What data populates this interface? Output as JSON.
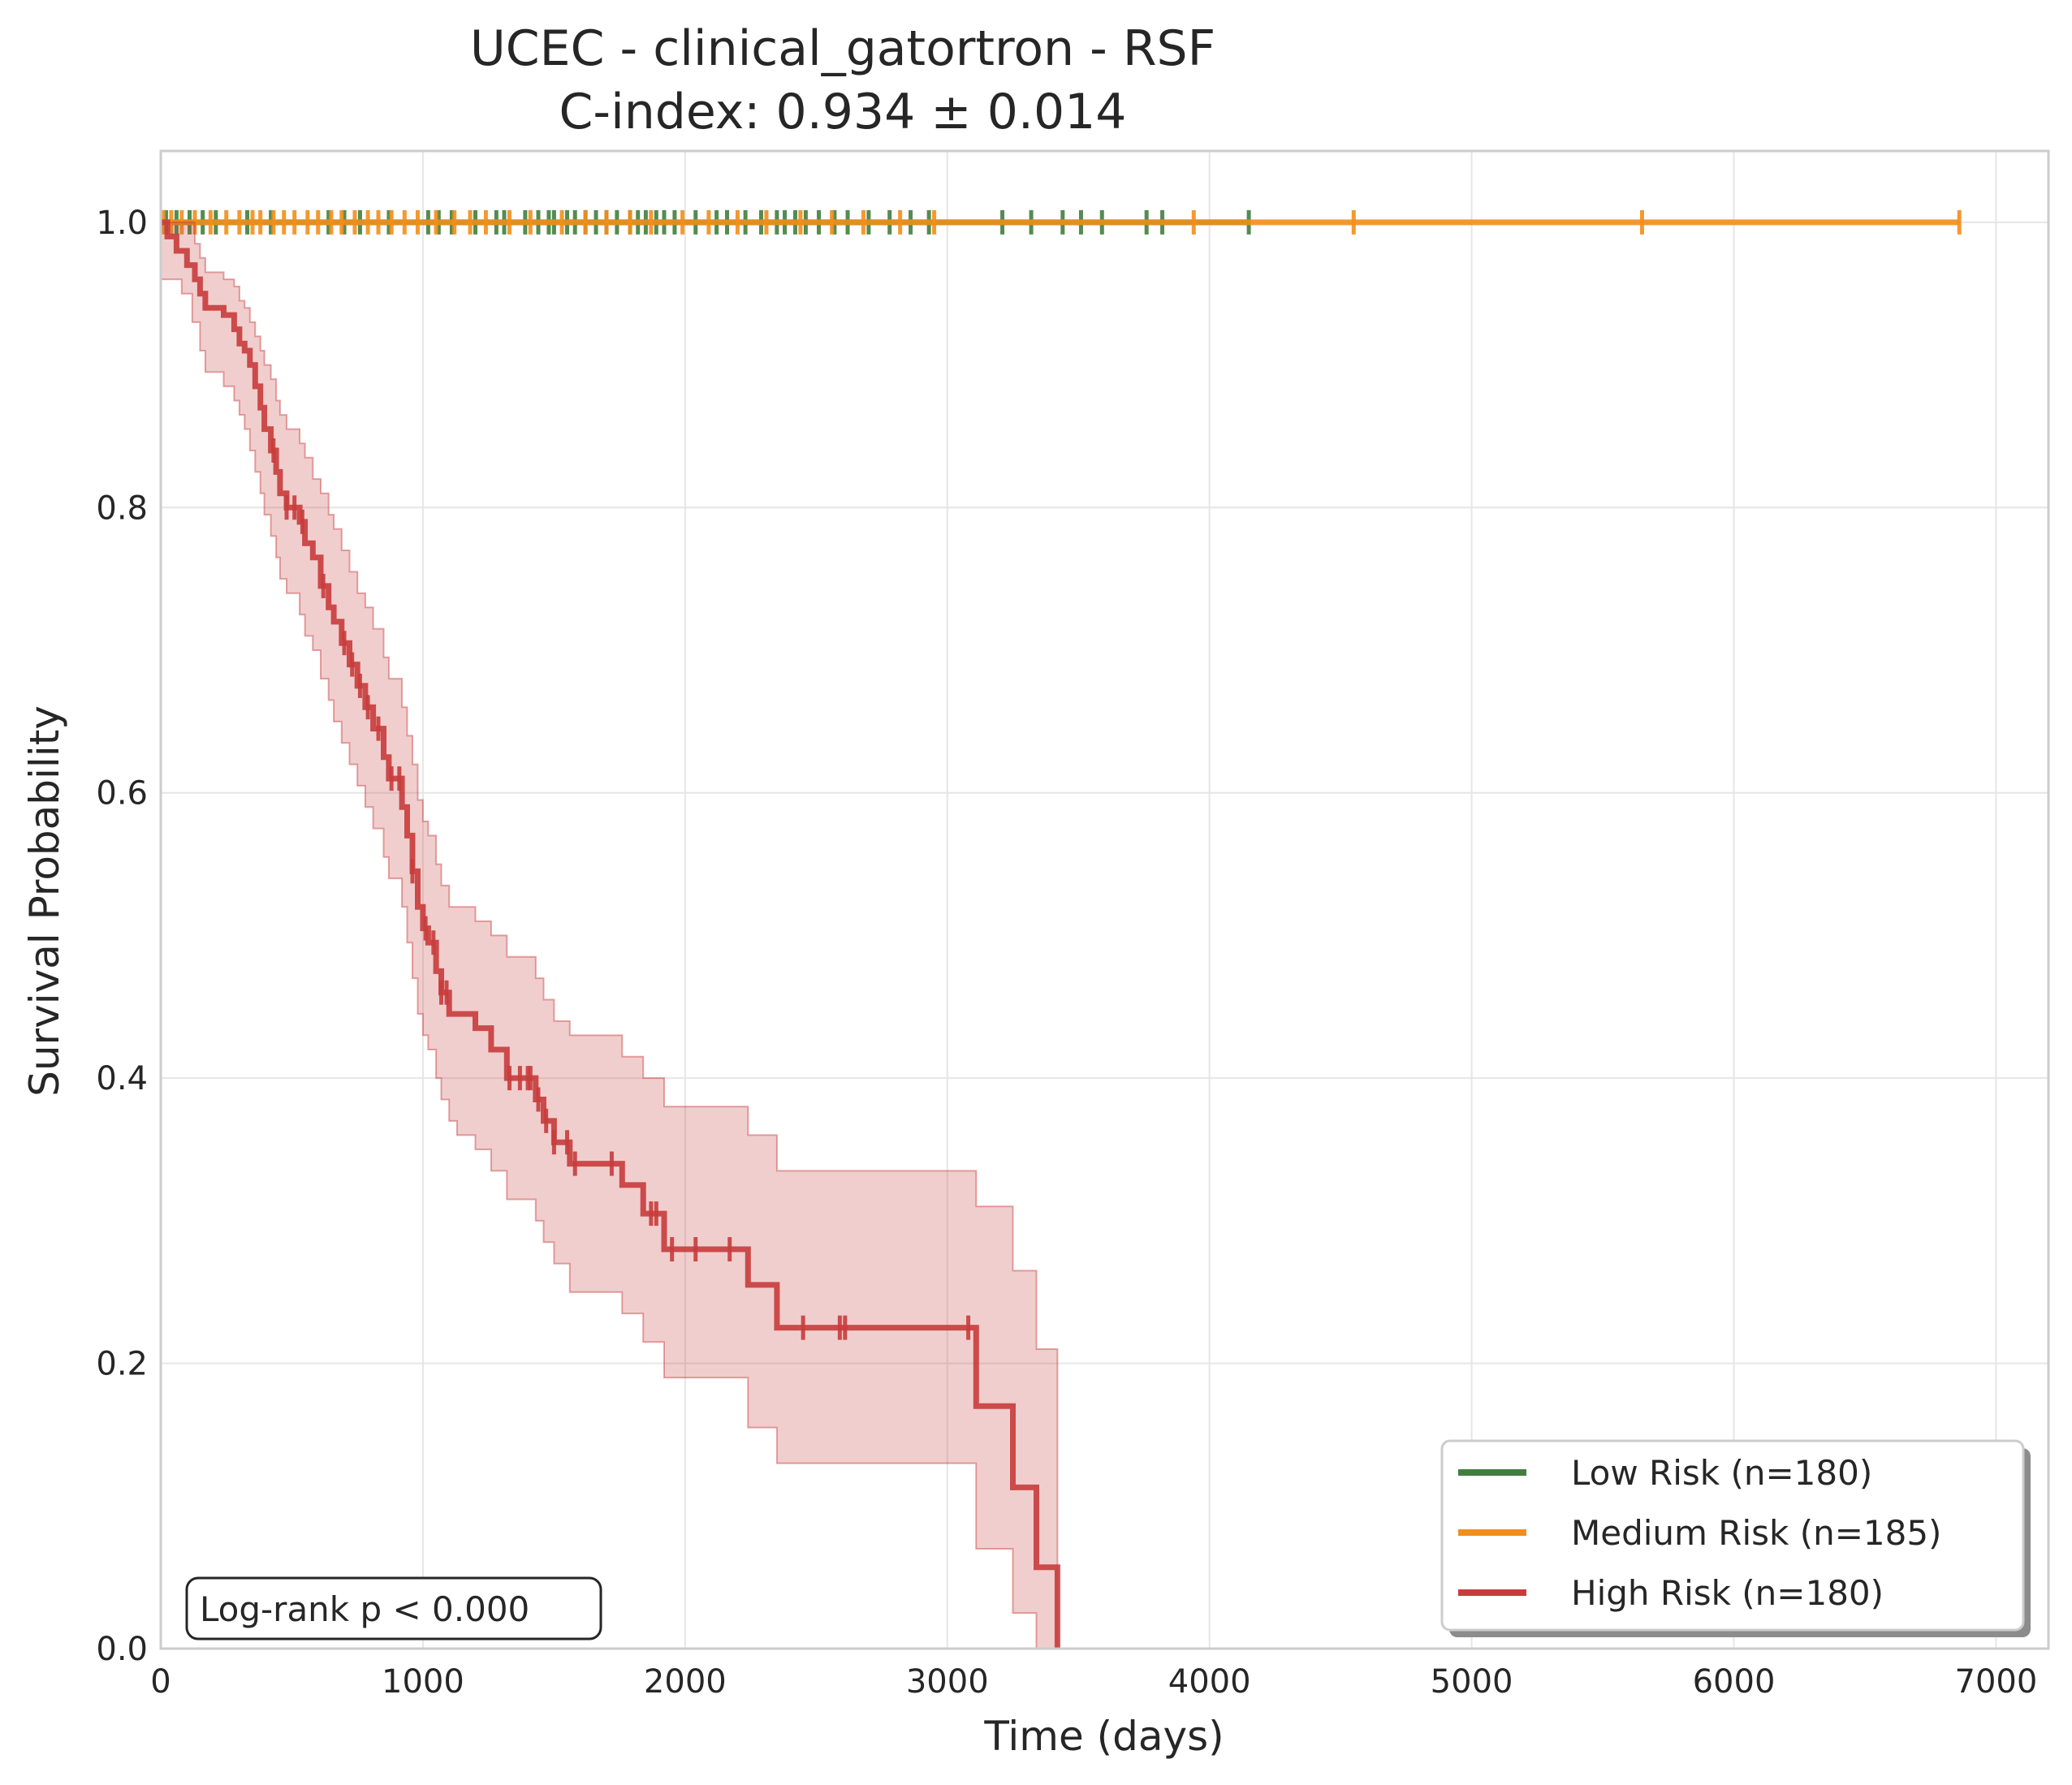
{
  "chart_data": {
    "type": "line",
    "subtype": "kaplan-meier",
    "title": "UCEC - clinical_gatortron - RSF",
    "subtitle": "C-index: 0.934 ± 0.014",
    "xlabel": "Time (days)",
    "ylabel": "Survival Probability",
    "xlim": [
      0,
      7200
    ],
    "ylim": [
      0,
      1.05
    ],
    "x_ticks": [
      0,
      1000,
      2000,
      3000,
      4000,
      5000,
      6000,
      7000
    ],
    "y_ticks": [
      0.0,
      0.2,
      0.4,
      0.6,
      0.8,
      1.0
    ],
    "x_tick_labels": [
      "0",
      "1000",
      "2000",
      "3000",
      "4000",
      "5000",
      "6000",
      "7000"
    ],
    "y_tick_labels": [
      "0.0",
      "0.2",
      "0.4",
      "0.6",
      "0.8",
      "1.0"
    ],
    "grid": true,
    "legend_position": "bottom-right",
    "annotation": "Log-rank p < 0.000",
    "series": [
      {
        "name": "Low Risk (n=180)",
        "color": "#3f7f3f",
        "steps": [
          [
            0,
            1.0
          ],
          [
            4150,
            1.0
          ]
        ],
        "censor_times": [
          20,
          60,
          110,
          160,
          210,
          330,
          420,
          640,
          700,
          760,
          870,
          1020,
          1060,
          1110,
          1200,
          1280,
          1310,
          1390,
          1440,
          1480,
          1500,
          1550,
          1580,
          1620,
          1660,
          1700,
          1740,
          1790,
          1820,
          1850,
          1890,
          1920,
          1960,
          2040,
          2120,
          2160,
          2230,
          2290,
          2350,
          2380,
          2420,
          2460,
          2510,
          2570,
          2620,
          2700,
          2780,
          2860,
          2930,
          3210,
          3320,
          3440,
          3510,
          3590,
          3760,
          3820,
          4150
        ]
      },
      {
        "name": "Medium Risk (n=185)",
        "color": "#f28e1c",
        "steps": [
          [
            0,
            1.0
          ],
          [
            6860,
            1.0
          ]
        ],
        "censor_times": [
          10,
          40,
          80,
          130,
          190,
          250,
          300,
          350,
          380,
          430,
          470,
          510,
          560,
          600,
          650,
          690,
          740,
          790,
          830,
          880,
          930,
          980,
          1050,
          1120,
          1180,
          1240,
          1330,
          1410,
          1530,
          1620,
          1700,
          1790,
          1870,
          1990,
          2090,
          2200,
          2310,
          2440,
          2560,
          2680,
          2820,
          2950,
          3940,
          4550,
          5650,
          6860
        ]
      },
      {
        "name": "High Risk (n=180)",
        "color": "#c83c3c",
        "steps": [
          [
            0,
            1.0
          ],
          [
            25,
            0.99
          ],
          [
            60,
            0.98
          ],
          [
            100,
            0.97
          ],
          [
            130,
            0.96
          ],
          [
            150,
            0.95
          ],
          [
            170,
            0.94
          ],
          [
            240,
            0.935
          ],
          [
            280,
            0.925
          ],
          [
            300,
            0.915
          ],
          [
            320,
            0.91
          ],
          [
            340,
            0.9
          ],
          [
            360,
            0.885
          ],
          [
            380,
            0.87
          ],
          [
            395,
            0.855
          ],
          [
            420,
            0.84
          ],
          [
            440,
            0.825
          ],
          [
            455,
            0.81
          ],
          [
            480,
            0.8
          ],
          [
            530,
            0.79
          ],
          [
            550,
            0.775
          ],
          [
            580,
            0.765
          ],
          [
            610,
            0.745
          ],
          [
            640,
            0.73
          ],
          [
            660,
            0.72
          ],
          [
            690,
            0.705
          ],
          [
            720,
            0.69
          ],
          [
            750,
            0.675
          ],
          [
            780,
            0.66
          ],
          [
            810,
            0.645
          ],
          [
            850,
            0.625
          ],
          [
            870,
            0.61
          ],
          [
            920,
            0.59
          ],
          [
            940,
            0.57
          ],
          [
            960,
            0.545
          ],
          [
            980,
            0.52
          ],
          [
            1000,
            0.505
          ],
          [
            1020,
            0.495
          ],
          [
            1050,
            0.475
          ],
          [
            1070,
            0.46
          ],
          [
            1100,
            0.445
          ],
          [
            1200,
            0.435
          ],
          [
            1260,
            0.42
          ],
          [
            1320,
            0.4
          ],
          [
            1430,
            0.385
          ],
          [
            1460,
            0.37
          ],
          [
            1500,
            0.355
          ],
          [
            1560,
            0.34
          ],
          [
            1760,
            0.325
          ],
          [
            1840,
            0.305
          ],
          [
            1920,
            0.28
          ],
          [
            2240,
            0.255
          ],
          [
            2350,
            0.225
          ],
          [
            3110,
            0.17
          ],
          [
            3250,
            0.113
          ],
          [
            3340,
            0.057
          ],
          [
            3420,
            0.0
          ]
        ],
        "lower": [
          [
            0,
            0.96
          ],
          [
            25,
            0.96
          ],
          [
            80,
            0.95
          ],
          [
            120,
            0.93
          ],
          [
            150,
            0.91
          ],
          [
            170,
            0.895
          ],
          [
            240,
            0.885
          ],
          [
            280,
            0.875
          ],
          [
            300,
            0.865
          ],
          [
            320,
            0.855
          ],
          [
            340,
            0.84
          ],
          [
            360,
            0.825
          ],
          [
            380,
            0.81
          ],
          [
            395,
            0.795
          ],
          [
            420,
            0.78
          ],
          [
            440,
            0.765
          ],
          [
            455,
            0.75
          ],
          [
            480,
            0.74
          ],
          [
            530,
            0.725
          ],
          [
            550,
            0.71
          ],
          [
            580,
            0.7
          ],
          [
            610,
            0.68
          ],
          [
            640,
            0.665
          ],
          [
            660,
            0.65
          ],
          [
            690,
            0.635
          ],
          [
            720,
            0.62
          ],
          [
            750,
            0.605
          ],
          [
            780,
            0.59
          ],
          [
            810,
            0.575
          ],
          [
            850,
            0.555
          ],
          [
            870,
            0.54
          ],
          [
            920,
            0.52
          ],
          [
            940,
            0.495
          ],
          [
            960,
            0.47
          ],
          [
            980,
            0.445
          ],
          [
            1000,
            0.43
          ],
          [
            1020,
            0.42
          ],
          [
            1050,
            0.4
          ],
          [
            1070,
            0.385
          ],
          [
            1100,
            0.37
          ],
          [
            1130,
            0.36
          ],
          [
            1200,
            0.35
          ],
          [
            1260,
            0.335
          ],
          [
            1320,
            0.315
          ],
          [
            1430,
            0.3
          ],
          [
            1460,
            0.285
          ],
          [
            1500,
            0.27
          ],
          [
            1560,
            0.25
          ],
          [
            1760,
            0.235
          ],
          [
            1840,
            0.215
          ],
          [
            1920,
            0.19
          ],
          [
            2240,
            0.155
          ],
          [
            2350,
            0.13
          ],
          [
            3110,
            0.07
          ],
          [
            3250,
            0.025
          ],
          [
            3340,
            0.0
          ],
          [
            3420,
            0.0
          ]
        ],
        "upper": [
          [
            0,
            1.0
          ],
          [
            100,
            1.0
          ],
          [
            130,
            0.985
          ],
          [
            150,
            0.975
          ],
          [
            170,
            0.965
          ],
          [
            240,
            0.96
          ],
          [
            280,
            0.955
          ],
          [
            300,
            0.945
          ],
          [
            320,
            0.94
          ],
          [
            340,
            0.93
          ],
          [
            360,
            0.92
          ],
          [
            380,
            0.91
          ],
          [
            395,
            0.9
          ],
          [
            420,
            0.89
          ],
          [
            440,
            0.875
          ],
          [
            455,
            0.865
          ],
          [
            480,
            0.855
          ],
          [
            530,
            0.845
          ],
          [
            550,
            0.835
          ],
          [
            580,
            0.82
          ],
          [
            610,
            0.81
          ],
          [
            640,
            0.795
          ],
          [
            660,
            0.785
          ],
          [
            690,
            0.77
          ],
          [
            720,
            0.755
          ],
          [
            750,
            0.74
          ],
          [
            780,
            0.73
          ],
          [
            810,
            0.715
          ],
          [
            850,
            0.695
          ],
          [
            870,
            0.68
          ],
          [
            920,
            0.66
          ],
          [
            940,
            0.64
          ],
          [
            960,
            0.62
          ],
          [
            980,
            0.595
          ],
          [
            1000,
            0.58
          ],
          [
            1020,
            0.57
          ],
          [
            1050,
            0.55
          ],
          [
            1070,
            0.535
          ],
          [
            1100,
            0.52
          ],
          [
            1200,
            0.51
          ],
          [
            1260,
            0.5
          ],
          [
            1320,
            0.485
          ],
          [
            1430,
            0.47
          ],
          [
            1460,
            0.455
          ],
          [
            1500,
            0.44
          ],
          [
            1560,
            0.43
          ],
          [
            1760,
            0.415
          ],
          [
            1840,
            0.4
          ],
          [
            1920,
            0.38
          ],
          [
            2240,
            0.36
          ],
          [
            2350,
            0.335
          ],
          [
            3110,
            0.31
          ],
          [
            3250,
            0.265
          ],
          [
            3340,
            0.21
          ],
          [
            3420,
            0.21
          ]
        ],
        "censor_times": [
          430,
          480,
          510,
          540,
          620,
          700,
          730,
          760,
          790,
          830,
          880,
          910,
          960,
          1010,
          1040,
          1070,
          1090,
          1330,
          1370,
          1400,
          1410,
          1440,
          1470,
          1500,
          1550,
          1580,
          1720,
          1870,
          1890,
          1950,
          2040,
          2170,
          2450,
          2590,
          2610,
          3080
        ]
      }
    ]
  }
}
